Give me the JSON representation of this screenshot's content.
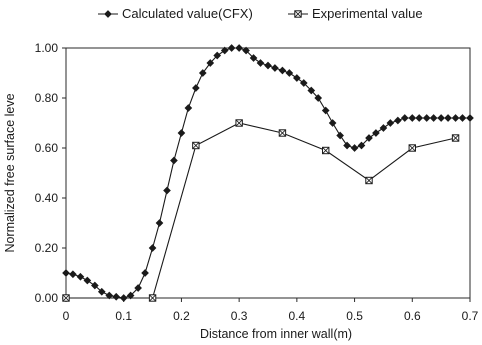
{
  "chart_data": {
    "type": "line",
    "xlabel": "Distance from inner wall(m)",
    "ylabel": "Normalized free surface leve",
    "xlim": [
      0,
      0.7
    ],
    "ylim": [
      0,
      1.0
    ],
    "x_ticks": [
      "0",
      "0.1",
      "0.2",
      "0.3",
      "0.4",
      "0.5",
      "0.6",
      "0.7"
    ],
    "y_ticks": [
      "0.00",
      "0.20",
      "0.40",
      "0.60",
      "0.80",
      "1.00"
    ],
    "x_tick_values": [
      0,
      0.1,
      0.2,
      0.3,
      0.4,
      0.5,
      0.6,
      0.7
    ],
    "y_tick_values": [
      0,
      0.2,
      0.4,
      0.6,
      0.8,
      1.0
    ],
    "legend_position": "top",
    "grid": false,
    "series": [
      {
        "name": "Calculated value(CFX)",
        "marker": "diamond",
        "color": "#1a1a1a",
        "x": [
          0.0,
          0.012,
          0.025,
          0.037,
          0.05,
          0.062,
          0.075,
          0.087,
          0.1,
          0.112,
          0.125,
          0.137,
          0.15,
          0.162,
          0.175,
          0.187,
          0.2,
          0.212,
          0.225,
          0.237,
          0.25,
          0.262,
          0.275,
          0.287,
          0.3,
          0.312,
          0.325,
          0.337,
          0.35,
          0.362,
          0.375,
          0.387,
          0.4,
          0.412,
          0.425,
          0.437,
          0.45,
          0.462,
          0.475,
          0.487,
          0.5,
          0.512,
          0.525,
          0.537,
          0.55,
          0.562,
          0.575,
          0.587,
          0.6,
          0.612,
          0.625,
          0.637,
          0.65,
          0.662,
          0.675,
          0.687,
          0.7
        ],
        "y": [
          0.1,
          0.095,
          0.085,
          0.07,
          0.05,
          0.025,
          0.01,
          0.005,
          0.0,
          0.01,
          0.04,
          0.1,
          0.2,
          0.3,
          0.43,
          0.55,
          0.66,
          0.76,
          0.84,
          0.9,
          0.94,
          0.97,
          0.99,
          1.0,
          1.0,
          0.99,
          0.96,
          0.94,
          0.93,
          0.92,
          0.91,
          0.9,
          0.88,
          0.86,
          0.83,
          0.8,
          0.75,
          0.7,
          0.65,
          0.61,
          0.6,
          0.61,
          0.64,
          0.66,
          0.68,
          0.7,
          0.71,
          0.72,
          0.72,
          0.72,
          0.72,
          0.72,
          0.72,
          0.72,
          0.72,
          0.72,
          0.72
        ]
      },
      {
        "name": "Experimental value",
        "marker": "square",
        "color": "#1a1a1a",
        "x": [
          0.0,
          0.15,
          0.225,
          0.3,
          0.375,
          0.45,
          0.525,
          0.6,
          0.675
        ],
        "y": [
          0.0,
          0.0,
          0.61,
          0.7,
          0.66,
          0.59,
          0.47,
          0.6,
          0.64
        ]
      }
    ]
  }
}
